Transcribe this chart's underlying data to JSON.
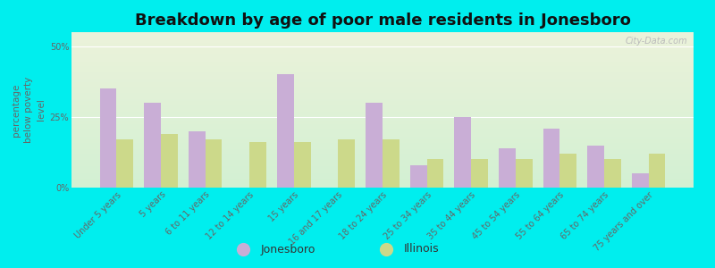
{
  "title": "Breakdown by age of poor male residents in Jonesboro",
  "ylabel": "percentage\nbelow poverty\nlevel",
  "categories": [
    "Under 5 years",
    "5 years",
    "6 to 11 years",
    "12 to 14 years",
    "15 years",
    "16 and 17 years",
    "18 to 24 years",
    "25 to 34 years",
    "35 to 44 years",
    "45 to 54 years",
    "55 to 64 years",
    "65 to 74 years",
    "75 years and over"
  ],
  "jonesboro": [
    35,
    30,
    20,
    0,
    40,
    0,
    30,
    8,
    25,
    14,
    21,
    15,
    5
  ],
  "illinois": [
    17,
    19,
    17,
    16,
    16,
    17,
    17,
    10,
    10,
    10,
    12,
    10,
    12
  ],
  "jonesboro_color": "#c9aed6",
  "illinois_color": "#ccd98a",
  "outer_bg": "#00eeee",
  "ylim": [
    0,
    55
  ],
  "yticks": [
    0,
    25,
    50
  ],
  "ytick_labels": [
    "0%",
    "25%",
    "50%"
  ],
  "bar_width": 0.38,
  "title_fontsize": 13,
  "axis_label_fontsize": 7.5,
  "tick_fontsize": 7,
  "legend_fontsize": 9,
  "watermark": "City-Data.com"
}
